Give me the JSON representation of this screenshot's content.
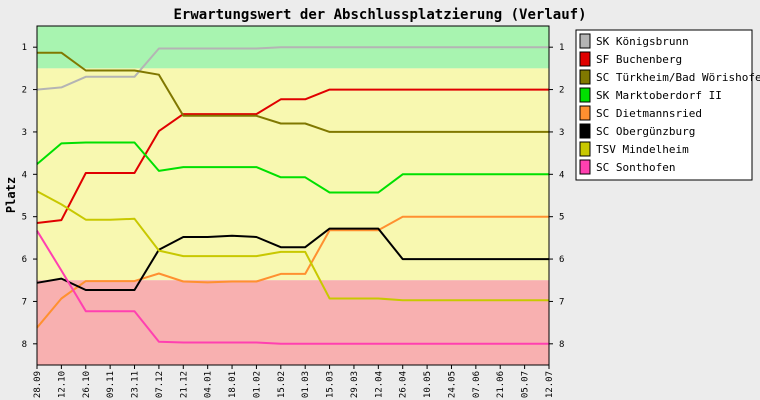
{
  "chart_data": {
    "type": "line",
    "title": "Erwartungswert der Abschlussplatzierung (Verlauf)",
    "xlabel": "",
    "ylabel": "Platz",
    "ylim": [
      0.5,
      8.5
    ],
    "y_inverted": true,
    "y_ticks": [
      1,
      2,
      3,
      4,
      5,
      6,
      7,
      8
    ],
    "grid": false,
    "legend_position": "right",
    "background_bands": [
      {
        "from": 0.5,
        "to": 1.5,
        "color": "#a8f4b0"
      },
      {
        "from": 1.5,
        "to": 6.5,
        "color": "#f8f8b0"
      },
      {
        "from": 6.5,
        "to": 8.5,
        "color": "#f8b0b0"
      }
    ],
    "x": [
      "28.09",
      "12.10",
      "26.10",
      "09.11",
      "23.11",
      "07.12",
      "21.12",
      "04.01",
      "18.01",
      "01.02",
      "15.02",
      "01.03",
      "15.03",
      "29.03",
      "12.04",
      "26.04",
      "10.05",
      "24.05",
      "07.06",
      "21.06",
      "05.07",
      "12.07"
    ],
    "series": [
      {
        "name": "SK Königsbrunn",
        "color": "#b4b4b4",
        "values": [
          2.0,
          1.95,
          1.7,
          1.7,
          1.7,
          1.03,
          1.03,
          1.03,
          1.03,
          1.03,
          1.0,
          1.0,
          1.0,
          1.0,
          1.0,
          1.0,
          1.0,
          1.0,
          1.0,
          1.0,
          1.0,
          1.0
        ]
      },
      {
        "name": "SF Buchenberg",
        "color": "#e00000",
        "values": [
          5.15,
          5.08,
          3.97,
          3.97,
          3.97,
          2.98,
          2.58,
          2.58,
          2.58,
          2.58,
          2.23,
          2.23,
          2.0,
          2.0,
          2.0,
          2.0,
          2.0,
          2.0,
          2.0,
          2.0,
          2.0,
          2.0
        ]
      },
      {
        "name": "SC Türkheim/Bad Wörishofen",
        "color": "#807800",
        "values": [
          1.13,
          1.13,
          1.55,
          1.55,
          1.55,
          1.65,
          2.62,
          2.62,
          2.62,
          2.62,
          2.8,
          2.8,
          3.0,
          3.0,
          3.0,
          3.0,
          3.0,
          3.0,
          3.0,
          3.0,
          3.0,
          3.0
        ]
      },
      {
        "name": "SK Marktoberdorf II",
        "color": "#00e000",
        "values": [
          3.76,
          3.27,
          3.25,
          3.25,
          3.25,
          3.92,
          3.83,
          3.83,
          3.83,
          3.83,
          4.07,
          4.07,
          4.43,
          4.43,
          4.43,
          4.0,
          4.0,
          4.0,
          4.0,
          4.0,
          4.0,
          4.0
        ]
      },
      {
        "name": "SC Dietmannsried",
        "color": "#ff9030",
        "values": [
          7.62,
          6.93,
          6.52,
          6.52,
          6.52,
          6.34,
          6.53,
          6.55,
          6.53,
          6.53,
          6.35,
          6.35,
          5.32,
          5.32,
          5.32,
          5.0,
          5.0,
          5.0,
          5.0,
          5.0,
          5.0,
          5.0
        ]
      },
      {
        "name": "SC Obergünzburg",
        "color": "#000000",
        "values": [
          6.56,
          6.46,
          6.73,
          6.73,
          6.73,
          5.78,
          5.48,
          5.48,
          5.45,
          5.48,
          5.72,
          5.72,
          5.28,
          5.28,
          5.28,
          6.0,
          6.0,
          6.0,
          6.0,
          6.0,
          6.0,
          6.0
        ]
      },
      {
        "name": "TSV Mindelheim",
        "color": "#c8c800",
        "values": [
          4.4,
          4.71,
          5.07,
          5.07,
          5.05,
          5.8,
          5.93,
          5.93,
          5.93,
          5.93,
          5.83,
          5.83,
          6.93,
          6.93,
          6.93,
          6.97,
          6.97,
          6.97,
          6.97,
          6.97,
          6.97,
          6.97
        ]
      },
      {
        "name": "SC Sonthofen",
        "color": "#ff40b0",
        "values": [
          5.33,
          6.27,
          7.23,
          7.23,
          7.23,
          7.95,
          7.97,
          7.97,
          7.97,
          7.97,
          8.0,
          8.0,
          8.0,
          8.0,
          8.0,
          8.0,
          8.0,
          8.0,
          8.0,
          8.0,
          8.0,
          8.0
        ]
      }
    ]
  }
}
